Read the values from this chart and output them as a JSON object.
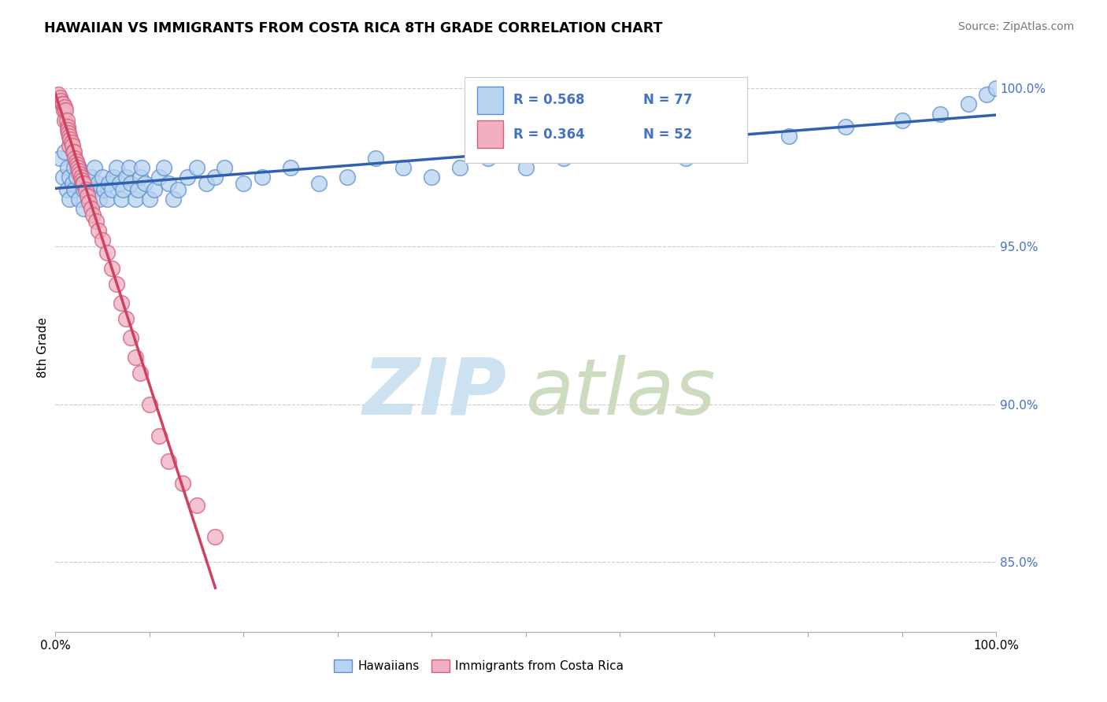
{
  "title": "HAWAIIAN VS IMMIGRANTS FROM COSTA RICA 8TH GRADE CORRELATION CHART",
  "source": "Source: ZipAtlas.com",
  "ylabel": "8th Grade",
  "xlim": [
    0.0,
    1.0
  ],
  "ylim": [
    0.828,
    1.008
  ],
  "yticks": [
    0.85,
    0.9,
    0.95,
    1.0
  ],
  "ytick_labels": [
    "85.0%",
    "90.0%",
    "95.0%",
    "100.0%"
  ],
  "legend_r1": "R = 0.568",
  "legend_n1": "N = 77",
  "legend_r2": "R = 0.364",
  "legend_n2": "N = 52",
  "color_hawaiian_fill": "#b8d4f0",
  "color_hawaiian_edge": "#6090d0",
  "color_cr_fill": "#f0b0c0",
  "color_cr_edge": "#d06080",
  "color_hawaiian_line": "#3060b0",
  "color_cr_line": "#d04060",
  "color_ytick": "#4472c4",
  "hawaiian_x": [
    0.005,
    0.008,
    0.01,
    0.012,
    0.013,
    0.015,
    0.015,
    0.018,
    0.02,
    0.02,
    0.022,
    0.025,
    0.025,
    0.028,
    0.03,
    0.03,
    0.033,
    0.035,
    0.037,
    0.038,
    0.04,
    0.042,
    0.045,
    0.047,
    0.05,
    0.052,
    0.055,
    0.057,
    0.06,
    0.062,
    0.065,
    0.068,
    0.07,
    0.072,
    0.075,
    0.078,
    0.08,
    0.085,
    0.088,
    0.09,
    0.092,
    0.095,
    0.1,
    0.105,
    0.11,
    0.115,
    0.12,
    0.125,
    0.13,
    0.14,
    0.15,
    0.16,
    0.17,
    0.18,
    0.2,
    0.22,
    0.25,
    0.28,
    0.31,
    0.34,
    0.37,
    0.4,
    0.43,
    0.46,
    0.5,
    0.54,
    0.58,
    0.62,
    0.67,
    0.72,
    0.78,
    0.84,
    0.9,
    0.94,
    0.97,
    0.99,
    1.0
  ],
  "hawaiian_y": [
    0.978,
    0.972,
    0.98,
    0.968,
    0.975,
    0.972,
    0.965,
    0.97,
    0.975,
    0.968,
    0.972,
    0.975,
    0.965,
    0.97,
    0.968,
    0.962,
    0.97,
    0.965,
    0.968,
    0.972,
    0.968,
    0.975,
    0.97,
    0.965,
    0.972,
    0.968,
    0.965,
    0.97,
    0.968,
    0.972,
    0.975,
    0.97,
    0.965,
    0.968,
    0.972,
    0.975,
    0.97,
    0.965,
    0.968,
    0.972,
    0.975,
    0.97,
    0.965,
    0.968,
    0.972,
    0.975,
    0.97,
    0.965,
    0.968,
    0.972,
    0.975,
    0.97,
    0.972,
    0.975,
    0.97,
    0.972,
    0.975,
    0.97,
    0.972,
    0.978,
    0.975,
    0.972,
    0.975,
    0.978,
    0.975,
    0.978,
    0.98,
    0.982,
    0.978,
    0.982,
    0.985,
    0.988,
    0.99,
    0.992,
    0.995,
    0.998,
    1.0
  ],
  "cr_x": [
    0.003,
    0.005,
    0.006,
    0.007,
    0.008,
    0.009,
    0.01,
    0.01,
    0.011,
    0.012,
    0.013,
    0.013,
    0.014,
    0.015,
    0.015,
    0.016,
    0.017,
    0.018,
    0.019,
    0.02,
    0.021,
    0.022,
    0.023,
    0.024,
    0.025,
    0.026,
    0.027,
    0.028,
    0.029,
    0.03,
    0.032,
    0.034,
    0.036,
    0.038,
    0.04,
    0.043,
    0.046,
    0.05,
    0.055,
    0.06,
    0.065,
    0.07,
    0.075,
    0.08,
    0.085,
    0.09,
    0.1,
    0.11,
    0.12,
    0.135,
    0.15,
    0.17
  ],
  "cr_y": [
    0.998,
    0.997,
    0.996,
    0.995,
    0.995,
    0.993,
    0.994,
    0.99,
    0.993,
    0.99,
    0.988,
    0.987,
    0.986,
    0.985,
    0.982,
    0.984,
    0.983,
    0.982,
    0.98,
    0.98,
    0.978,
    0.977,
    0.976,
    0.975,
    0.974,
    0.973,
    0.972,
    0.971,
    0.97,
    0.97,
    0.968,
    0.966,
    0.964,
    0.962,
    0.96,
    0.958,
    0.955,
    0.952,
    0.948,
    0.943,
    0.938,
    0.932,
    0.927,
    0.921,
    0.915,
    0.91,
    0.9,
    0.89,
    0.882,
    0.875,
    0.868,
    0.858
  ],
  "xtick_positions": [
    0.0,
    0.1,
    0.2,
    0.3,
    0.4,
    0.5,
    0.6,
    0.7,
    0.8,
    0.9,
    1.0
  ],
  "watermark_zip_color": "#c8dff0",
  "watermark_atlas_color": "#c8d8b8"
}
